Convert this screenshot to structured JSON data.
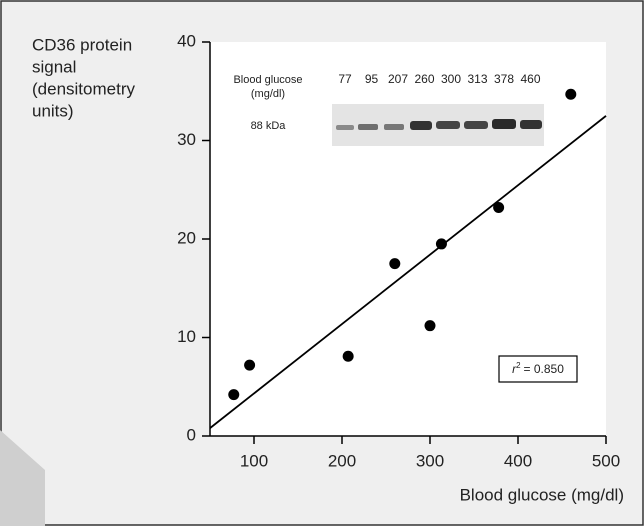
{
  "chart_data": {
    "type": "scatter",
    "y_label_lines": [
      "CD36 protein",
      "signal",
      "(densitometry",
      "units)"
    ],
    "x_label": "Blood glucose (mg/dl)",
    "x": [
      77,
      95,
      207,
      260,
      300,
      313,
      378,
      460
    ],
    "series": [
      {
        "color": "#000000",
        "values": [
          4.2,
          7.2,
          8.1,
          17.5,
          11.2,
          19.5,
          23.2,
          34.7
        ]
      }
    ],
    "fit": {
      "x": [
        50,
        500
      ],
      "y": [
        0.8,
        32.5
      ],
      "color": "#000000"
    },
    "annotation": {
      "symbol": "r",
      "power": "2",
      "text": "= 0.850"
    },
    "inset": {
      "title_lines": [
        "Blood glucose",
        "(mg/dl)"
      ],
      "marker": "88 kDa",
      "lanes": [
        77,
        95,
        207,
        260,
        300,
        313,
        378,
        460
      ]
    },
    "xlim": [
      50,
      500
    ],
    "xticks": [
      100,
      200,
      300,
      400,
      500
    ],
    "ylim": [
      0,
      40
    ],
    "yticks": [
      0,
      10,
      20,
      30,
      40
    ]
  }
}
